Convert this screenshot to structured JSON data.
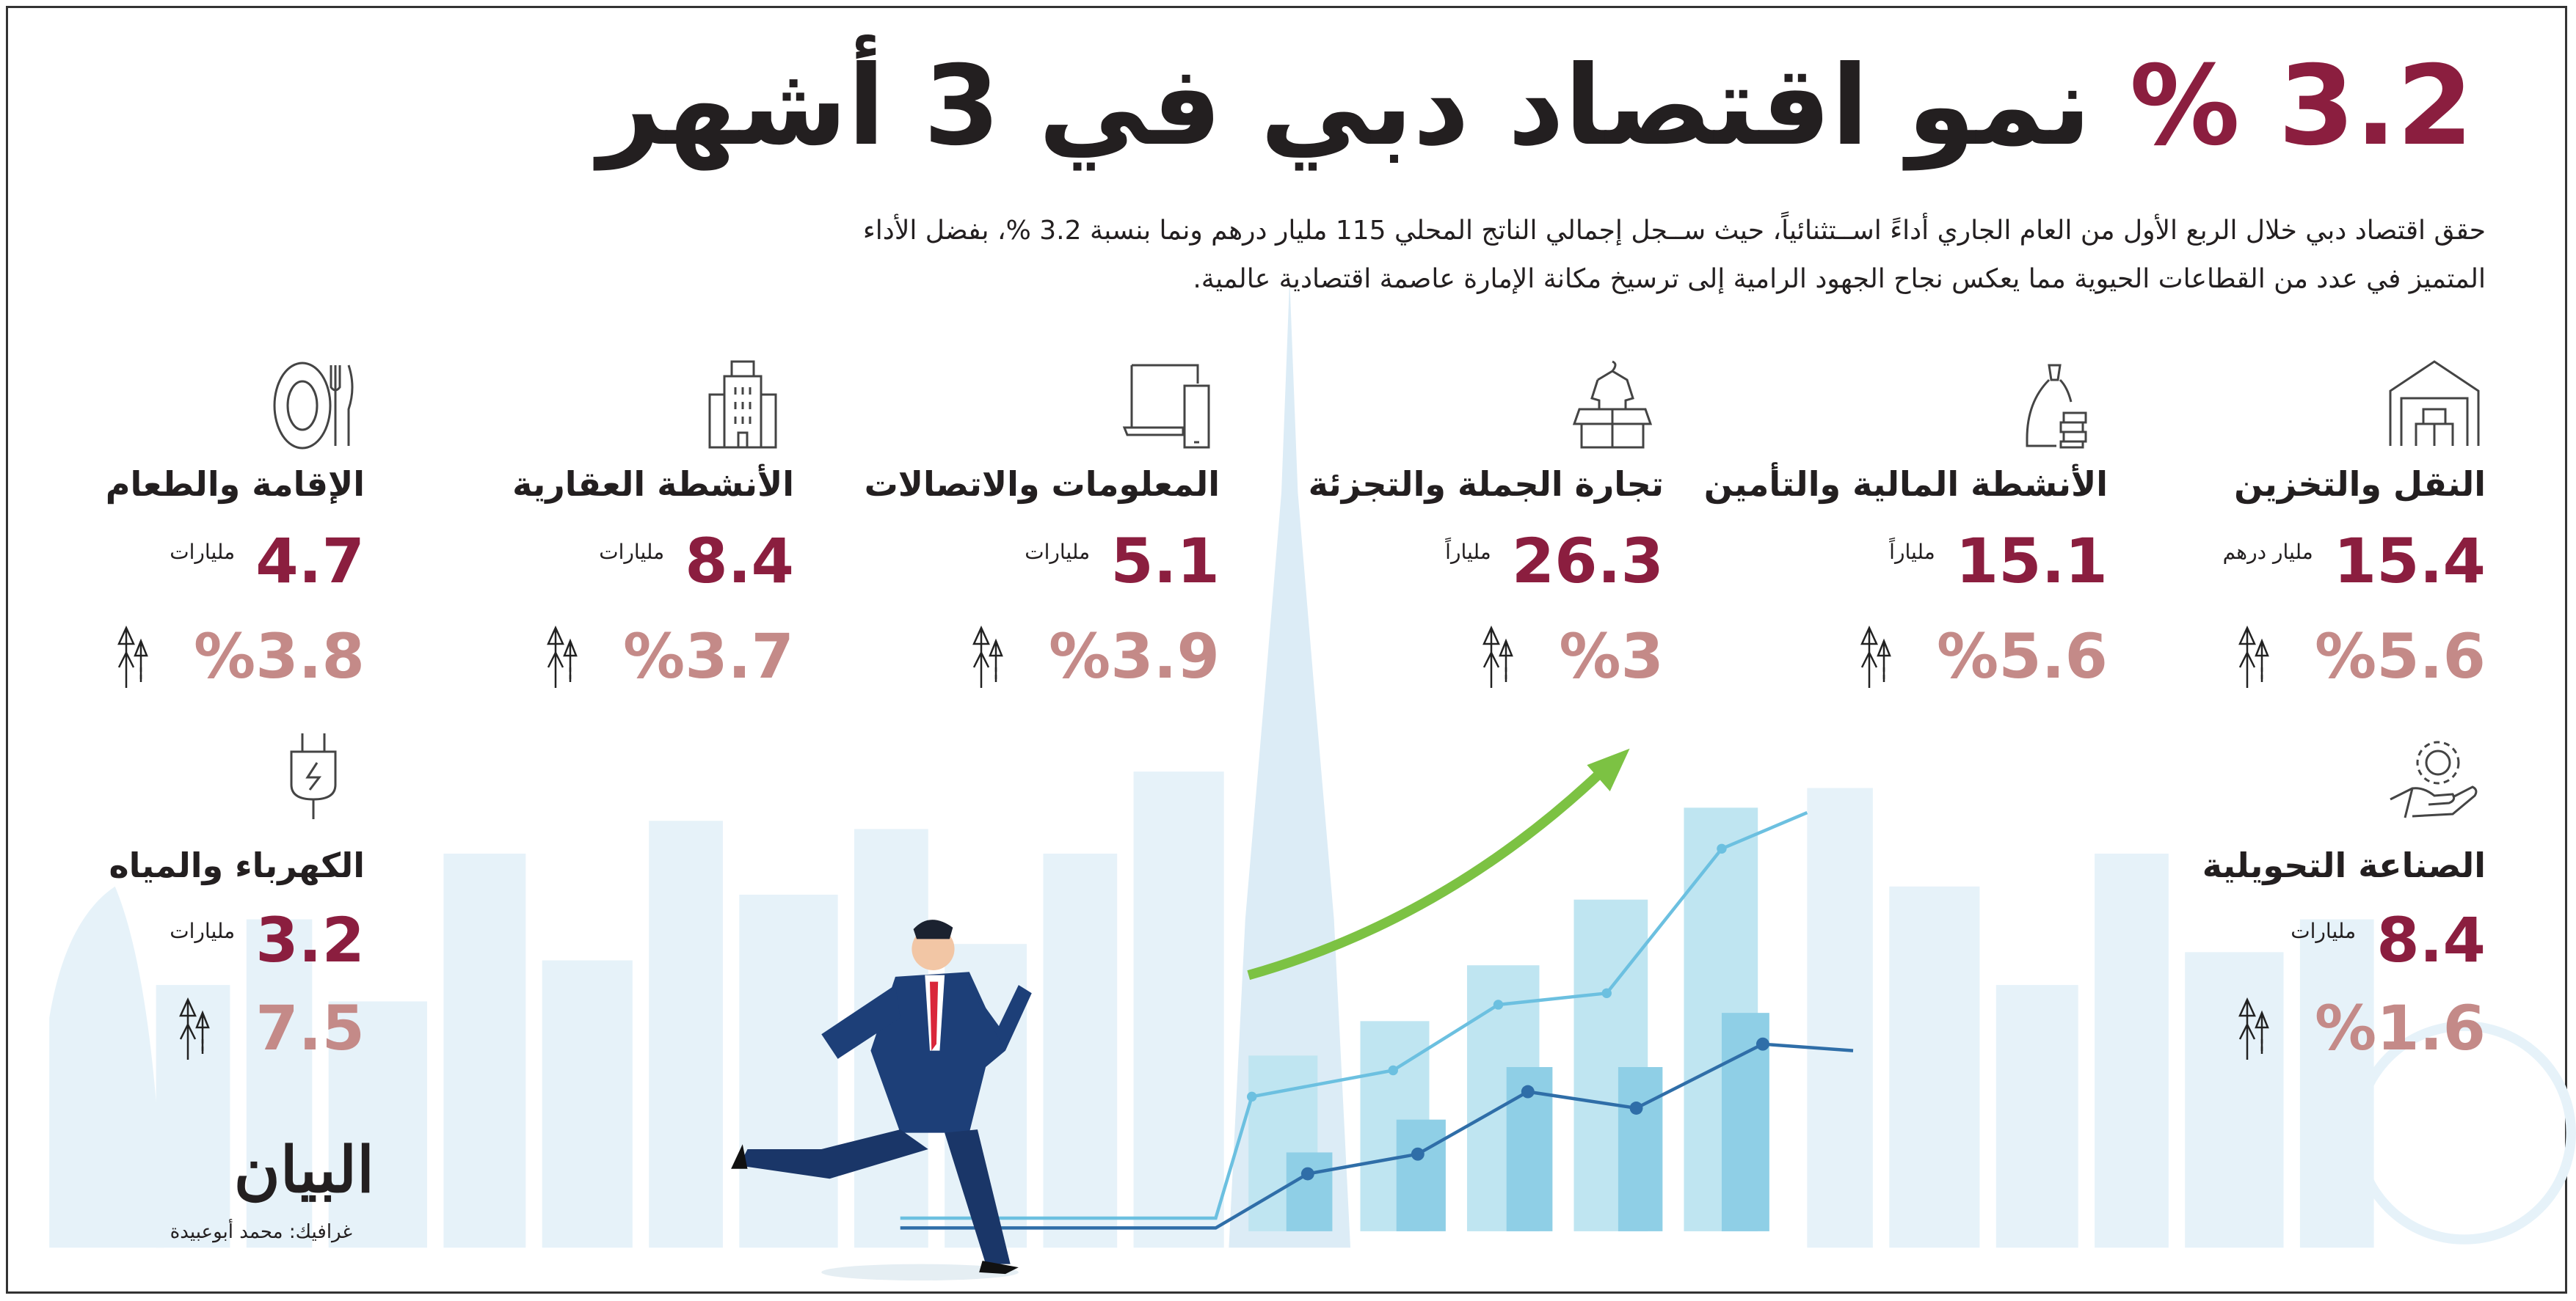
{
  "title": {
    "highlight": "3.2 %",
    "rest": "نمو اقتصاد دبي في 3 أشهر"
  },
  "intro": [
    "حقق اقتصاد دبي خلال الربع الأول من العام الجاري أداءً اســتثنائياً، حيث ســجل إجمالي الناتج المحلي 115 مليار درهم ونما بنسبة 3.2 %، بفضل الأداء",
    "المتميز في عدد من القطاعات الحيوية مما يعكس نجاح الجهود الرامية إلى ترسيخ مكانة الإمارة عاصمة اقتصادية عالمية."
  ],
  "sectors": [
    {
      "label": "النقل والتخزين",
      "value": "15.4",
      "unit": "مليار درهم",
      "growth": "%5.6",
      "icon": "warehouse-icon"
    },
    {
      "label": "الأنشطة المالية والتأمين",
      "value": "15.1",
      "unit": "ملياراً",
      "growth": "%5.6",
      "icon": "money-bag-coins-icon"
    },
    {
      "label": "تجارة الجملة والتجزئة",
      "value": "26.3",
      "unit": "ملياراً",
      "growth": "%3",
      "icon": "shirt-box-icon"
    },
    {
      "label": "المعلومات والاتصالات",
      "value": "5.1",
      "unit": "مليارات",
      "growth": "%3.9",
      "icon": "laptop-phone-icon"
    },
    {
      "label": "الأنشطة العقارية",
      "value": "8.4",
      "unit": "مليارات",
      "growth": "%3.7",
      "icon": "building-icon"
    },
    {
      "label": "الإقامة والطعام",
      "value": "4.7",
      "unit": "مليارات",
      "growth": "%3.8",
      "icon": "plate-cutlery-icon"
    },
    {
      "label": "الصناعة التحويلية",
      "value": "8.4",
      "unit": "مليارات",
      "growth": "%1.6",
      "icon": "gear-hand-icon"
    },
    {
      "label": "الكهرباء والمياه",
      "value": "3.2",
      "unit": "مليارات",
      "growth": "7.5",
      "icon": "power-plug-icon"
    }
  ],
  "logo": "البيان",
  "credit": "غرافيك: محمد أبوعبيدة",
  "colors": {
    "accent": "#8b1e3f",
    "growth": "#c48a88",
    "skyline": "#e3f1f8",
    "bars": "#9fd6e8",
    "line_dark": "#2f6ea8",
    "arrow": "#7cc243",
    "suit": "#1d3f78"
  }
}
